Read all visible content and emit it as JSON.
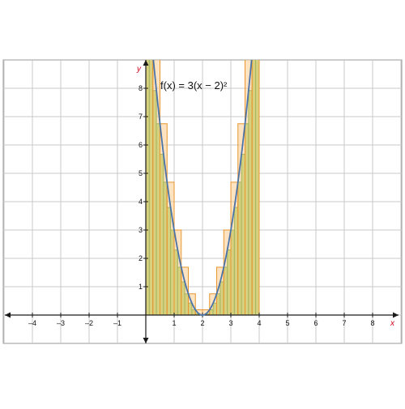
{
  "chart_data": {
    "type": "area",
    "function_label": "f(x) = 3(x − 2)²",
    "function": {
      "a": 3,
      "h": 2,
      "k": 0
    },
    "x_axis_label": "x",
    "y_axis_label": "y",
    "xlim": [
      -5,
      9
    ],
    "ylim": [
      -1,
      9
    ],
    "grid": true,
    "x_ticks": [
      -4,
      -3,
      -2,
      -1,
      1,
      2,
      3,
      4,
      5,
      6,
      7,
      8
    ],
    "y_ticks": [
      1,
      2,
      3,
      4,
      5,
      6,
      7,
      8
    ],
    "integration_interval": [
      0,
      4
    ],
    "rectangle_count": 16,
    "rectangle_width": 0.25,
    "upper_rectangles": [
      {
        "x0": 0.0,
        "x1": 0.25,
        "height": 12.0
      },
      {
        "x0": 0.25,
        "x1": 0.5,
        "height": 9.1875
      },
      {
        "x0": 0.5,
        "x1": 0.75,
        "height": 6.75
      },
      {
        "x0": 0.75,
        "x1": 1.0,
        "height": 4.6875
      },
      {
        "x0": 1.0,
        "x1": 1.25,
        "height": 3.0
      },
      {
        "x0": 1.25,
        "x1": 1.5,
        "height": 1.6875
      },
      {
        "x0": 1.5,
        "x1": 1.75,
        "height": 0.75
      },
      {
        "x0": 1.75,
        "x1": 2.0,
        "height": 0.1875
      },
      {
        "x0": 2.0,
        "x1": 2.25,
        "height": 0.1875
      },
      {
        "x0": 2.25,
        "x1": 2.5,
        "height": 0.75
      },
      {
        "x0": 2.5,
        "x1": 2.75,
        "height": 1.6875
      },
      {
        "x0": 2.75,
        "x1": 3.0,
        "height": 3.0
      },
      {
        "x0": 3.0,
        "x1": 3.25,
        "height": 4.6875
      },
      {
        "x0": 3.25,
        "x1": 3.5,
        "height": 6.75
      },
      {
        "x0": 3.5,
        "x1": 3.75,
        "height": 9.1875
      },
      {
        "x0": 3.75,
        "x1": 4.0,
        "height": 12.0
      }
    ],
    "lower_rectangle_width": 0.125,
    "lower_rectangle_count": 32,
    "colors": {
      "curve": "#4a73a8",
      "upper_fill": "#fccc8e",
      "upper_stroke": "#e9962f",
      "lower_fill": "#a9d66d",
      "lower_stroke": "#3f9a2a",
      "grid": "#c8c8c8",
      "axis": "#1a1a1a",
      "axis_label": "#d0021b"
    }
  }
}
